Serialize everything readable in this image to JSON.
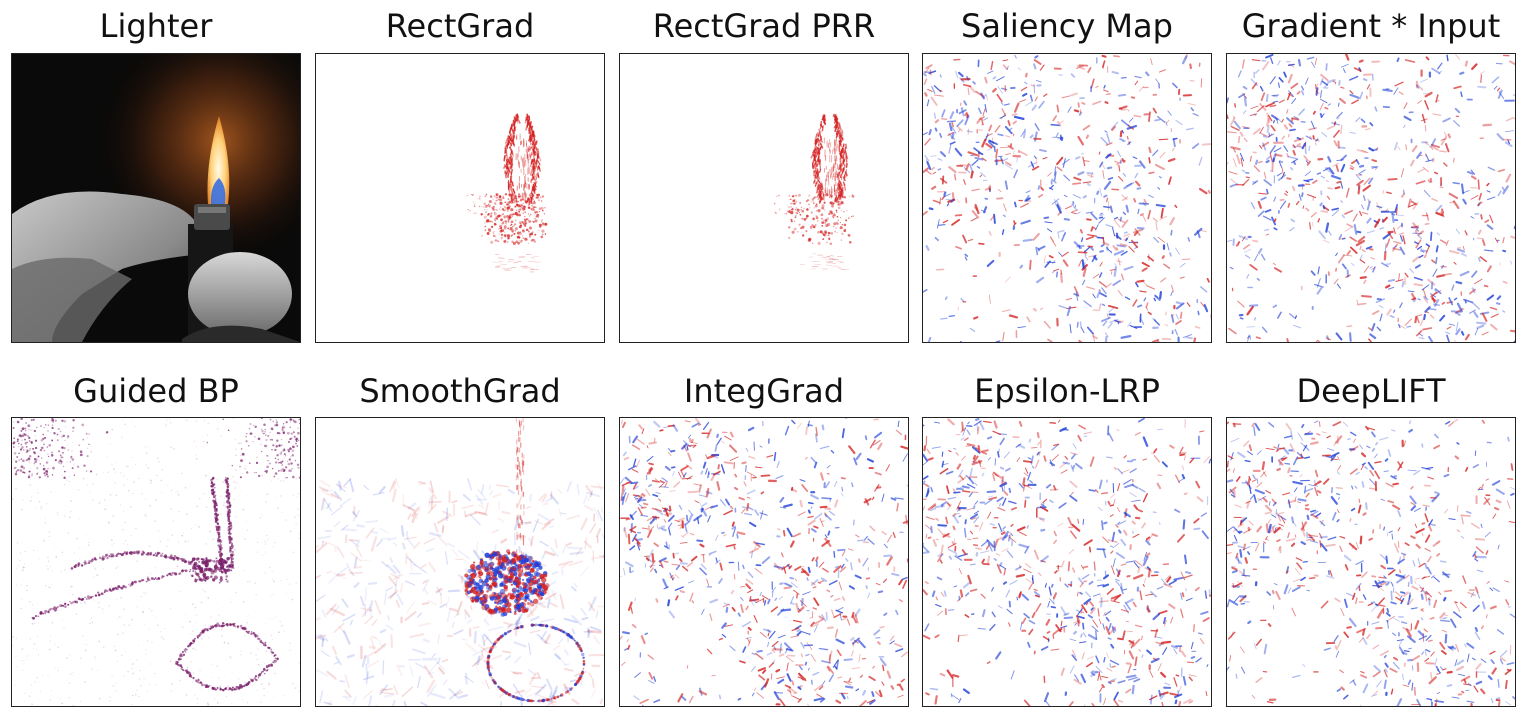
{
  "figure": {
    "panels": [
      {
        "id": "lighter",
        "title": "Lighter",
        "kind": "photo"
      },
      {
        "id": "rectgrad",
        "title": "RectGrad",
        "kind": "sparse"
      },
      {
        "id": "rectgrad-prr",
        "title": "RectGrad PRR",
        "kind": "sparse"
      },
      {
        "id": "saliency-map",
        "title": "Saliency Map",
        "kind": "dense"
      },
      {
        "id": "gradient-input",
        "title": "Gradient * Input",
        "kind": "dense"
      },
      {
        "id": "guided-bp",
        "title": "Guided BP",
        "kind": "guided"
      },
      {
        "id": "smoothgrad",
        "title": "SmoothGrad",
        "kind": "smooth"
      },
      {
        "id": "integgrad",
        "title": "IntegGrad",
        "kind": "dense"
      },
      {
        "id": "epsilon-lrp",
        "title": "Epsilon-LRP",
        "kind": "dense"
      },
      {
        "id": "deeplift",
        "title": "DeepLIFT",
        "kind": "dense"
      }
    ],
    "colors": {
      "positive": "#d42020",
      "negative": "#1f3fd8",
      "guided": "#7a1f6a",
      "frame": "#222222"
    }
  }
}
